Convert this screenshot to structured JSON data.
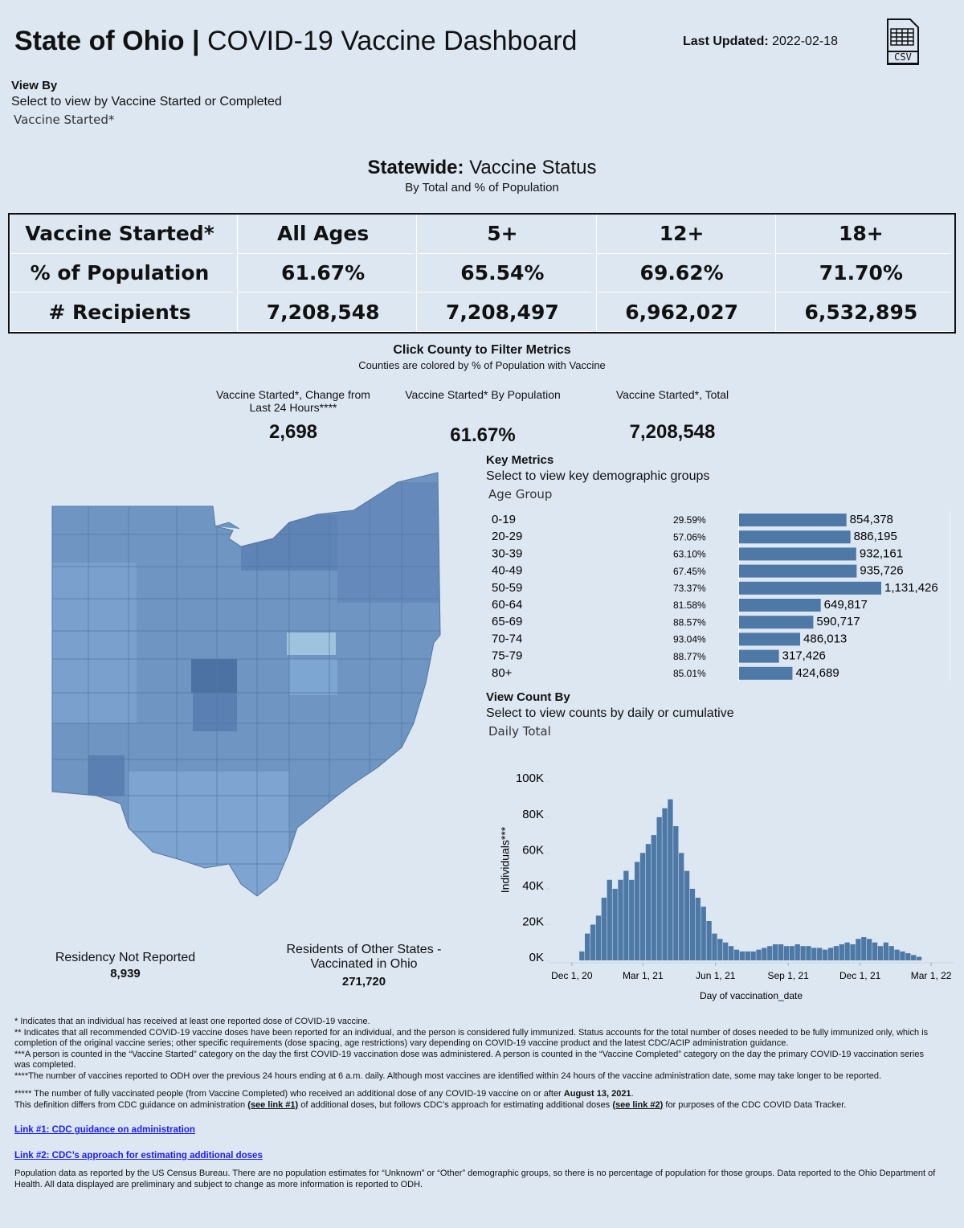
{
  "header": {
    "title_bold": "State of Ohio |",
    "title_rest": "COVID-19 Vaccine Dashboard",
    "updated_label": "Last Updated:",
    "updated_value": "2022-02-18",
    "csv_icon": "CSV"
  },
  "view_by": {
    "title": "View By",
    "subtitle": "Select to view by Vaccine Started or Completed",
    "selection": "Vaccine Started*"
  },
  "statewide": {
    "title_bold": "Statewide:",
    "title_rest": "Vaccine Status",
    "subtitle": "By Total and % of Population",
    "table": {
      "header": [
        "Vaccine Started*",
        "All Ages",
        "5+",
        "12+",
        "18+"
      ],
      "rows": [
        [
          "% of Population",
          "61.67%",
          "65.54%",
          "69.62%",
          "71.70%"
        ],
        [
          "# Recipients",
          "7,208,548",
          "7,208,497",
          "6,962,027",
          "6,532,895"
        ]
      ]
    }
  },
  "filter": {
    "title": "Click County to Filter Metrics",
    "subtitle": "Counties are colored by % of Population with Vaccine"
  },
  "kpis": [
    {
      "label": "Vaccine Started*, Change from Last 24 Hours****",
      "value": "2,698"
    },
    {
      "label": "Vaccine Started* By Population",
      "value": "61.67%"
    },
    {
      "label": "Vaccine Started*, Total",
      "value": "7,208,548"
    }
  ],
  "map_notes": [
    {
      "label": "Residency Not Reported",
      "value": "8,939"
    },
    {
      "label": "Residents of Other States - Vaccinated in Ohio",
      "value": "271,720"
    }
  ],
  "key_metrics": {
    "title": "Key Metrics",
    "subtitle": "Select to view key demographic groups",
    "selection": "Age Group"
  },
  "count_by": {
    "title": "View Count By",
    "subtitle": "Select to view counts by daily or cumulative",
    "selection": "Daily Total"
  },
  "chart_data": [
    {
      "type": "hbar",
      "color": "#4e79a7",
      "categories": [
        "0-19",
        "20-29",
        "30-39",
        "40-49",
        "50-59",
        "60-64",
        "65-69",
        "70-74",
        "75-79",
        "80+"
      ],
      "percent_of_population": [
        "29.59%",
        "57.06%",
        "63.10%",
        "67.45%",
        "73.37%",
        "81.58%",
        "88.57%",
        "93.04%",
        "88.77%",
        "85.01%"
      ],
      "values": [
        854378,
        886195,
        932161,
        935726,
        1131426,
        649817,
        590717,
        486013,
        317426,
        424689
      ],
      "value_labels": [
        "854,378",
        "886,195",
        "932,161",
        "935,726",
        "1,131,426",
        "649,817",
        "590,717",
        "486,013",
        "317,426",
        "424,689"
      ]
    },
    {
      "type": "bar",
      "color": "#4e79a7",
      "x_label": "Day of vaccination_date",
      "y_label": "Individuals***",
      "grid": false,
      "x": [
        "2020-12-14",
        "2020-12-21",
        "2020-12-28",
        "2021-01-04",
        "2021-01-11",
        "2021-01-18",
        "2021-01-25",
        "2021-02-01",
        "2021-02-08",
        "2021-02-15",
        "2021-02-22",
        "2021-03-01",
        "2021-03-08",
        "2021-03-15",
        "2021-03-22",
        "2021-03-29",
        "2021-04-05",
        "2021-04-12",
        "2021-04-19",
        "2021-04-26",
        "2021-05-03",
        "2021-05-10",
        "2021-05-17",
        "2021-05-24",
        "2021-05-31",
        "2021-06-07",
        "2021-06-14",
        "2021-06-21",
        "2021-06-28",
        "2021-07-05",
        "2021-07-12",
        "2021-07-19",
        "2021-07-26",
        "2021-08-02",
        "2021-08-09",
        "2021-08-16",
        "2021-08-23",
        "2021-08-30",
        "2021-09-06",
        "2021-09-13",
        "2021-09-20",
        "2021-09-27",
        "2021-10-04",
        "2021-10-11",
        "2021-10-18",
        "2021-10-25",
        "2021-11-01",
        "2021-11-08",
        "2021-11-15",
        "2021-11-22",
        "2021-11-29",
        "2021-12-06",
        "2021-12-13",
        "2021-12-20",
        "2021-12-27",
        "2022-01-03",
        "2022-01-10",
        "2022-01-17",
        "2022-01-24",
        "2022-01-31",
        "2022-02-07",
        "2022-02-14"
      ],
      "values": [
        5000,
        15000,
        20000,
        25000,
        35000,
        45000,
        40000,
        45000,
        50000,
        45000,
        55000,
        60000,
        65000,
        70000,
        80000,
        85000,
        90000,
        75000,
        60000,
        50000,
        40000,
        35000,
        30000,
        22000,
        15000,
        12000,
        10000,
        8000,
        6000,
        5000,
        5000,
        5000,
        6000,
        7000,
        8000,
        9000,
        9000,
        8000,
        8000,
        9000,
        8000,
        8000,
        7000,
        7000,
        6000,
        7000,
        8000,
        9000,
        10000,
        9000,
        12000,
        13000,
        12000,
        10000,
        8000,
        10000,
        8000,
        6000,
        5000,
        4000,
        3000,
        2000
      ],
      "xlim": [
        "2020-11-20",
        "2022-03-08"
      ],
      "xticks": [
        {
          "value": "2020-12-01",
          "label": "Dec 1, 20"
        },
        {
          "value": "2021-03-01",
          "label": "Mar 1, 21"
        },
        {
          "value": "2021-06-01",
          "label": "Jun 1, 21"
        },
        {
          "value": "2021-09-01",
          "label": "Sep 1, 21"
        },
        {
          "value": "2021-12-01",
          "label": "Dec 1, 21"
        },
        {
          "value": "2022-03-01",
          "label": "Mar 1, 22"
        }
      ],
      "ylim": [
        0,
        110000
      ],
      "yticks": [
        {
          "value": 0,
          "label": "0K"
        },
        {
          "value": 20000,
          "label": "20K"
        },
        {
          "value": 40000,
          "label": "40K"
        },
        {
          "value": 60000,
          "label": "60K"
        },
        {
          "value": 80000,
          "label": "80K"
        },
        {
          "value": 100000,
          "label": "100K"
        }
      ]
    }
  ],
  "footnotes": {
    "notes": [
      "* Indicates that an individual has received at least one reported dose of COVID-19 vaccine.",
      "** Indicates that all recommended COVID-19 vaccine doses have been reported for an individual, and the person is considered fully immunized. Status accounts for the total number of doses needed to be fully immunized only, which is completion of the original vaccine series; other specific requirements (dose spacing, age restrictions) vary depending on COVID-19 vaccine product and the latest CDC/ACIP administration guidance.",
      "***A person is counted in the “Vaccine Started” category on the day the first COVID-19 vaccination dose was administered. A person is counted in the “Vaccine Completed” category on the day the primary COVID-19 vaccination series was completed.",
      "****The number of vaccines reported to ODH over the previous 24 hours ending at 6 a.m. daily. Although most vaccines are identified within 24 hours of the vaccine administration date, some may take longer to be reported."
    ],
    "additional_dose": [
      "***** The number of fully vaccinated people (from Vaccine Completed) who received an additional dose of any COVID-19 vaccine on or after ",
      "August 13, 2021",
      "."
    ],
    "definition": [
      "This definition differs from CDC guidance on administration ",
      "(see link #1)",
      " of additional doses, but follows CDC’s approach for estimating additional doses ",
      "(see link #2)",
      " for purposes of the CDC COVID Data Tracker."
    ],
    "links": [
      "Link #1: CDC guidance on administration",
      "Link #2: CDC’s approach for estimating additional doses"
    ],
    "population": "Population data as reported by the US Census Bureau. There are no population estimates for “Unknown” or “Other” demographic groups, so there is no percentage of population for those groups.  Data reported to the Ohio Department of Health.  All data displayed are preliminary and subject to change as more information is reported to ODH."
  }
}
